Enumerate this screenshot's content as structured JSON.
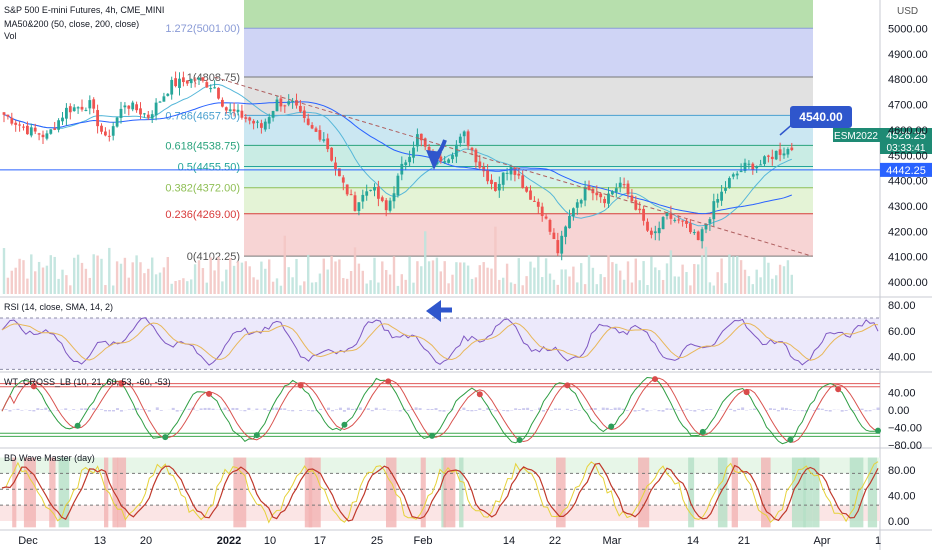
{
  "header": {
    "symbol_line": "S&P 500 E-mini Futures, 4h, CME_MINI",
    "ma_line": "MA50&200 (50, close, 200, close)",
    "vol_line": "Vol",
    "currency": "USD"
  },
  "colors": {
    "candle_up": "#26a69a",
    "candle_down": "#ef5350",
    "ma50": "#56b7d9",
    "ma200": "#2962ff",
    "trendline": "#b06060",
    "accent_blue": "#2f56cc",
    "price_tag": "#1e8a74"
  },
  "panels": {
    "rsi_label": "RSI (14, close, SMA, 14, 2)",
    "wt_label": "WT_CROSS_LB (10, 21, 60, 53, -60, -53)",
    "bd_label": "BD Wave Master (day)"
  },
  "chart_data": [
    {
      "type": "candlestick",
      "title": "S&P 500 E-mini Futures, 4h, CME_MINI",
      "x_ticks": [
        "Dec",
        "13",
        "20",
        "2022",
        "10",
        "17",
        "25",
        "Feb",
        "14",
        "22",
        "Mar",
        "14",
        "21",
        "Apr",
        "1"
      ],
      "y_ticks": [
        4000,
        4100,
        4200,
        4300,
        4400,
        4500,
        4600,
        4700,
        4800,
        4900,
        5000
      ],
      "y_unit": "USD",
      "ylim": [
        3960,
        5030
      ],
      "fibonacci": [
        {
          "ratio": "1.272",
          "value": 5001.0,
          "label": "1.272(5001.00)"
        },
        {
          "ratio": "1",
          "value": 4808.75,
          "label": "1(4808.75)"
        },
        {
          "ratio": "0.786",
          "value": 4657.5,
          "label": "0.786(4657.50)"
        },
        {
          "ratio": "0.618",
          "value": 4538.75,
          "label": "0.618(4538.75)"
        },
        {
          "ratio": "0.5",
          "value": 4455.5,
          "label": "0.5(4455.50)"
        },
        {
          "ratio": "0.382",
          "value": 4372.0,
          "label": "0.382(4372.00)"
        },
        {
          "ratio": "0.236",
          "value": 4269.0,
          "label": "0.236(4269.00)"
        },
        {
          "ratio": "0",
          "value": 4102.25,
          "label": "0(4102.25)"
        }
      ],
      "annotations": [
        {
          "text": "4540.00",
          "kind": "callout"
        },
        {
          "text": "ESM2022",
          "kind": "price-tag"
        },
        {
          "text": "4528.25",
          "kind": "price-tag"
        },
        {
          "text": "03:33:41",
          "kind": "countdown"
        },
        {
          "text": "4442.25",
          "kind": "horizontal-line-tag"
        }
      ],
      "horizontal_line_value": 4442.25,
      "last_price": 4528.25,
      "anchors": [
        {
          "t": 0,
          "p": 4660
        },
        {
          "t": 6,
          "p": 4600
        },
        {
          "t": 11,
          "p": 4575
        },
        {
          "t": 16,
          "p": 4680
        },
        {
          "t": 22,
          "p": 4700
        },
        {
          "t": 26,
          "p": 4560
        },
        {
          "t": 31,
          "p": 4705
        },
        {
          "t": 37,
          "p": 4655
        },
        {
          "t": 43,
          "p": 4780
        },
        {
          "t": 49,
          "p": 4800
        },
        {
          "t": 54,
          "p": 4770
        },
        {
          "t": 57,
          "p": 4680
        },
        {
          "t": 61,
          "p": 4655
        },
        {
          "t": 66,
          "p": 4610
        },
        {
          "t": 70,
          "p": 4710
        },
        {
          "t": 74,
          "p": 4700
        },
        {
          "t": 78,
          "p": 4610
        },
        {
          "t": 82,
          "p": 4570
        },
        {
          "t": 86,
          "p": 4410
        },
        {
          "t": 90,
          "p": 4300
        },
        {
          "t": 94,
          "p": 4380
        },
        {
          "t": 98,
          "p": 4280
        },
        {
          "t": 102,
          "p": 4450
        },
        {
          "t": 106,
          "p": 4575
        },
        {
          "t": 110,
          "p": 4480
        },
        {
          "t": 114,
          "p": 4500
        },
        {
          "t": 118,
          "p": 4580
        },
        {
          "t": 122,
          "p": 4460
        },
        {
          "t": 126,
          "p": 4370
        },
        {
          "t": 130,
          "p": 4470
        },
        {
          "t": 134,
          "p": 4360
        },
        {
          "t": 138,
          "p": 4280
        },
        {
          "t": 142,
          "p": 4120
        },
        {
          "t": 146,
          "p": 4300
        },
        {
          "t": 150,
          "p": 4380
        },
        {
          "t": 154,
          "p": 4330
        },
        {
          "t": 158,
          "p": 4390
        },
        {
          "t": 162,
          "p": 4300
        },
        {
          "t": 166,
          "p": 4170
        },
        {
          "t": 170,
          "p": 4260
        },
        {
          "t": 174,
          "p": 4230
        },
        {
          "t": 178,
          "p": 4160
        },
        {
          "t": 182,
          "p": 4300
        },
        {
          "t": 186,
          "p": 4400
        },
        {
          "t": 190,
          "p": 4455
        },
        {
          "t": 194,
          "p": 4465
        },
        {
          "t": 198,
          "p": 4510
        },
        {
          "t": 202,
          "p": 4528
        }
      ]
    },
    {
      "type": "line",
      "title": "RSI (14, close, SMA, 14, 2)",
      "y_ticks": [
        40,
        60,
        80
      ],
      "ylim": [
        28,
        84
      ],
      "bands": [
        70,
        30
      ]
    },
    {
      "type": "line",
      "title": "WT_CROSS_LB (10, 21, 60, 53, -60, -53)",
      "y_ticks": [
        40,
        0,
        -40,
        -80
      ],
      "y_tick_labels": [
        "40.00",
        "0.00",
        "−40.00",
        "−80.00"
      ],
      "ylim": [
        -82,
        82
      ],
      "levels": [
        60,
        53,
        -53,
        -60
      ]
    },
    {
      "type": "line",
      "title": "BD Wave Master (day)",
      "y_ticks": [
        80,
        40,
        0
      ],
      "y_tick_labels": [
        "80.00",
        "40.00",
        "0.00"
      ],
      "ylim": [
        -12,
        104
      ],
      "levels": [
        75,
        50,
        25
      ]
    }
  ]
}
